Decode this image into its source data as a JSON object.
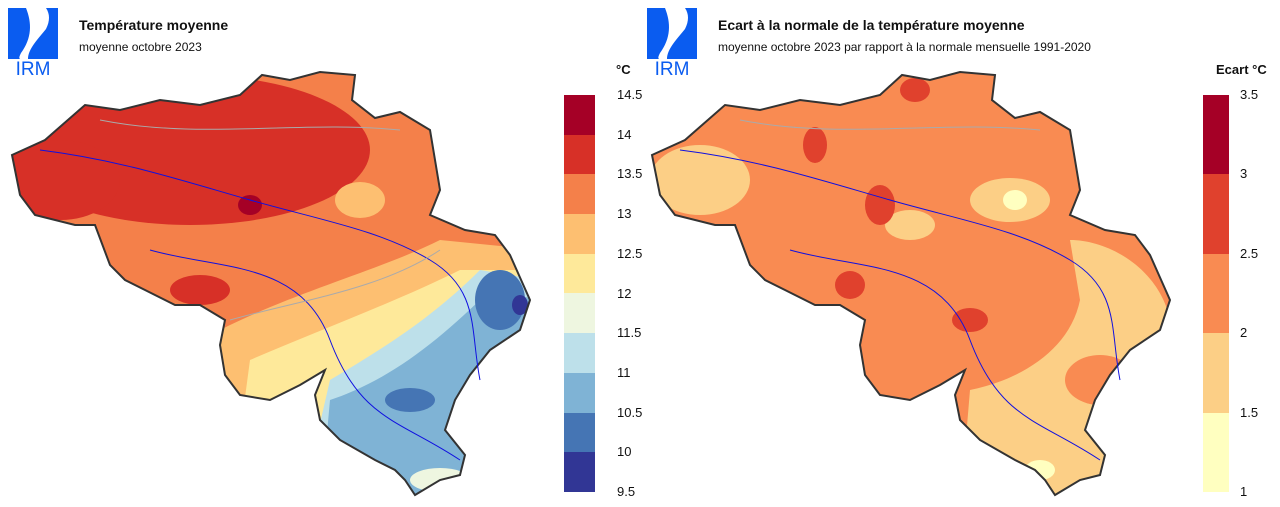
{
  "left": {
    "logo": "IRM",
    "title": "Température moyenne",
    "subtitle": "moyenne octobre 2023",
    "legend": {
      "unit": "°C",
      "ticks": [
        "14.5",
        "14",
        "13.5",
        "13",
        "12.5",
        "12",
        "11.5",
        "11",
        "10.5",
        "10",
        "9.5"
      ],
      "colors": [
        "#a50026",
        "#d73027",
        "#f4804a",
        "#fdbf71",
        "#fee99a",
        "#eef6e0",
        "#bde0ea",
        "#7fb3d5",
        "#4575b4",
        "#313695"
      ]
    }
  },
  "right": {
    "logo": "IRM",
    "title": "Ecart à la normale de la température moyenne",
    "subtitle": "moyenne octobre 2023 par rapport à la normale mensuelle 1991-2020",
    "legend": {
      "unit": "Ecart °C",
      "ticks": [
        "3.5",
        "3",
        "2.5",
        "2",
        "1.5",
        "1"
      ],
      "colors": [
        "#a50026",
        "#e0412d",
        "#f98b52",
        "#fccf86",
        "#ffffc0"
      ]
    }
  }
}
